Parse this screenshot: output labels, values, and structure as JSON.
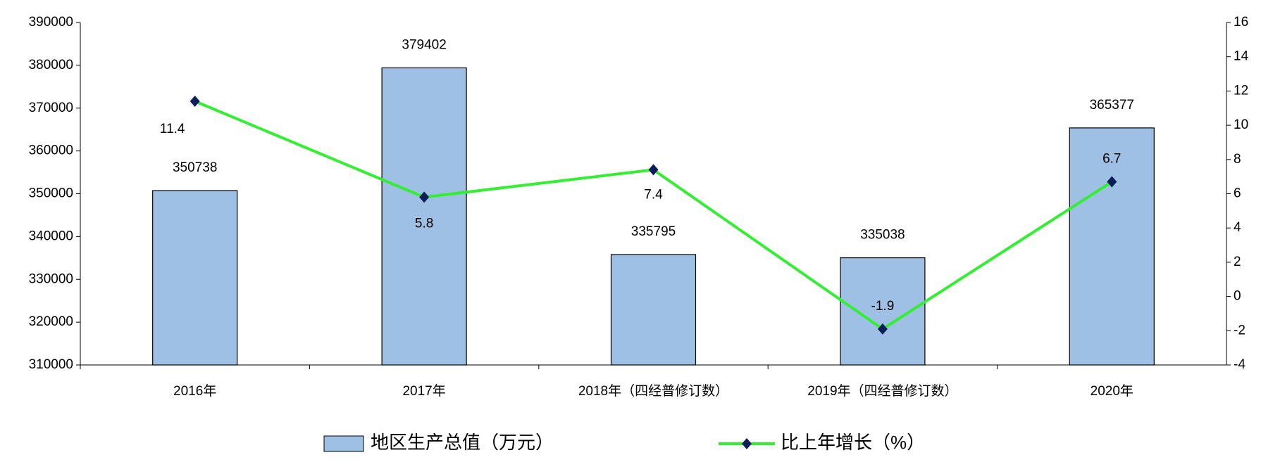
{
  "chart_data": {
    "type": "bar",
    "categories": [
      "2016年",
      "2017年",
      "2018年（四经普修订数）",
      "2019年（四经普修订数）",
      "2020年"
    ],
    "series": [
      {
        "name": "地区生产总值（万元）",
        "type": "bar",
        "color": "#9dc0e4",
        "values": [
          350738,
          379402,
          335795,
          335038,
          365377
        ]
      },
      {
        "name": "比上年增长（%）",
        "type": "line",
        "axis": "y2",
        "color": "#33ee33",
        "marker_color": "#0b1e5a",
        "values": [
          11.4,
          5.8,
          7.4,
          -1.9,
          6.7
        ]
      }
    ],
    "ylim": [
      310000,
      390000
    ],
    "yticks": [
      310000,
      320000,
      330000,
      340000,
      350000,
      360000,
      370000,
      380000,
      390000
    ],
    "y2lim": [
      -4,
      16
    ],
    "y2ticks": [
      -4,
      -2,
      0,
      2,
      4,
      6,
      8,
      10,
      12,
      14,
      16
    ],
    "legend": "bottom"
  }
}
